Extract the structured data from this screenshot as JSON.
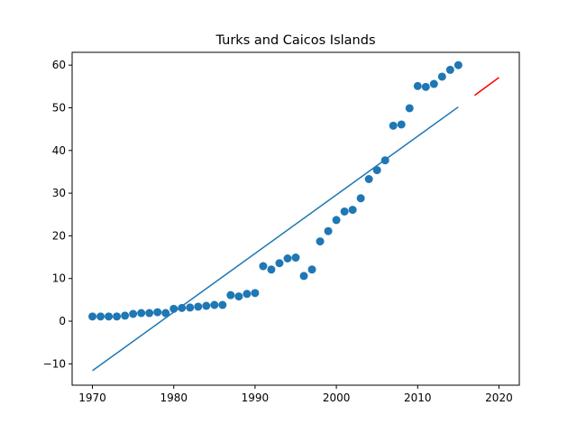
{
  "chart_data": {
    "type": "scatter",
    "title": "Turks and Caicos Islands",
    "xlabel": "",
    "ylabel": "",
    "xlim": [
      1967.5,
      2022.5
    ],
    "ylim": [
      -15,
      63
    ],
    "xticks": [
      1970,
      1980,
      1990,
      2000,
      2010,
      2020
    ],
    "yticks": [
      -10,
      0,
      10,
      20,
      30,
      40,
      50,
      60
    ],
    "grid": false,
    "colors": {
      "points": "#1f77b4",
      "fit": "#1f77b4",
      "forecast": "#ff0000"
    },
    "series": [
      {
        "kind": "scatter",
        "x": [
          1970,
          1971,
          1972,
          1973,
          1974,
          1975,
          1976,
          1977,
          1978,
          1979,
          1980,
          1981,
          1982,
          1983,
          1984,
          1985,
          1986,
          1987,
          1988,
          1989,
          1990,
          1991,
          1992,
          1993,
          1994,
          1995,
          1996,
          1997,
          1998,
          1999,
          2000,
          2001,
          2002,
          2003,
          2004,
          2005,
          2006,
          2007,
          2008,
          2009,
          2010,
          2011,
          2012,
          2013,
          2014,
          2015
        ],
        "y": [
          1.1,
          1.1,
          1.1,
          1.1,
          1.3,
          1.7,
          1.9,
          1.9,
          2.1,
          1.9,
          2.9,
          3.1,
          3.2,
          3.4,
          3.6,
          3.8,
          3.8,
          6.1,
          5.8,
          6.4,
          6.6,
          12.9,
          12.1,
          13.6,
          14.7,
          14.9,
          10.6,
          12.1,
          18.7,
          21.1,
          23.7,
          25.7,
          26.1,
          28.8,
          33.3,
          35.4,
          37.7,
          45.8,
          46.1,
          49.9,
          55.1,
          54.9,
          55.6,
          57.3,
          58.9,
          60.0
        ]
      },
      {
        "kind": "line",
        "role": "fit",
        "x": [
          1970,
          2015
        ],
        "y": [
          -11.6,
          50.2
        ]
      },
      {
        "kind": "line",
        "role": "forecast",
        "x": [
          2017,
          2020
        ],
        "y": [
          52.9,
          57.1
        ]
      }
    ]
  }
}
